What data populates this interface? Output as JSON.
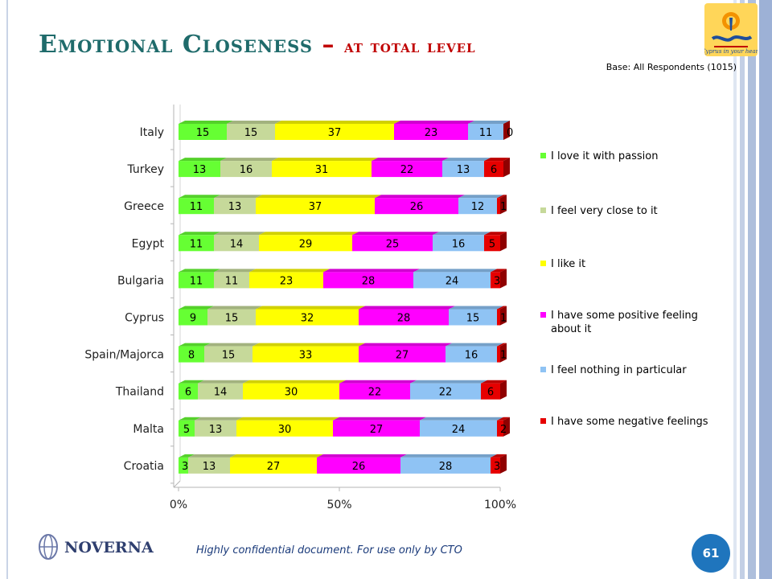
{
  "slide": {
    "title_main": "Emotional Closeness",
    "title_dash": "–",
    "title_sub": "at total level",
    "base_note": "Base: All Respondents (1015)",
    "footer_note": "Highly confidential document. For use only by CTO",
    "page_number": "61",
    "logo_text": "Cyprus in your heart",
    "footer_logo_text": "NOVERNA"
  },
  "colors": {
    "title": "#1f6b6b",
    "title_accent": "#c00000",
    "badge": "#1f75bd"
  },
  "chart_data": {
    "type": "bar",
    "orientation": "horizontal",
    "stacked": "percent",
    "categories": [
      "Italy",
      "Turkey",
      "Greece",
      "Egypt",
      "Bulgaria",
      "Cyprus",
      "Spain/Majorca",
      "Thailand",
      "Malta",
      "Croatia"
    ],
    "series": [
      {
        "name": "I love it with passion",
        "color": "#66ff33",
        "values": [
          15,
          13,
          11,
          11,
          11,
          9,
          8,
          6,
          5,
          3
        ]
      },
      {
        "name": "I feel very close to it",
        "color": "#c6d99a",
        "values": [
          15,
          16,
          13,
          14,
          11,
          15,
          15,
          14,
          13,
          13
        ]
      },
      {
        "name": "I like it",
        "color": "#ffff00",
        "values": [
          37,
          31,
          37,
          29,
          23,
          32,
          33,
          30,
          30,
          27
        ]
      },
      {
        "name": "I have some positive feeling about it",
        "color": "#ff00ff",
        "values": [
          23,
          22,
          26,
          25,
          28,
          28,
          27,
          22,
          27,
          26
        ]
      },
      {
        "name": "I feel nothing in particular",
        "color": "#8fc3f4",
        "values": [
          11,
          13,
          12,
          16,
          24,
          15,
          16,
          22,
          24,
          28
        ]
      },
      {
        "name": "I have some negative feelings",
        "color": "#e60000",
        "values": [
          0,
          6,
          1,
          5,
          3,
          1,
          1,
          6,
          2,
          3
        ]
      }
    ],
    "x_ticks": [
      "0%",
      "50%",
      "100%"
    ],
    "xlim": [
      0,
      100
    ],
    "legend_position": "right",
    "grid": false
  }
}
